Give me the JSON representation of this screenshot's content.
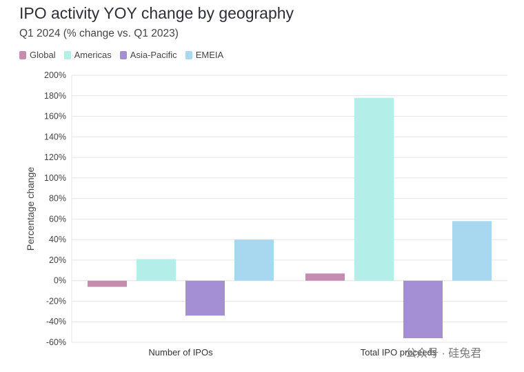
{
  "chart_data": {
    "type": "bar",
    "title": "IPO activity YOY change by geography",
    "subtitle": "Q1 2024 (% change vs. Q1 2023)",
    "ylabel": "Percentage change",
    "xlabel": "",
    "categories": [
      "Number of IPOs",
      "Total IPO proceeds"
    ],
    "series": [
      {
        "name": "Global",
        "color": "#c58cb0",
        "values": [
          -6,
          7
        ]
      },
      {
        "name": "Americas",
        "color": "#b4eee8",
        "values": [
          21,
          178
        ]
      },
      {
        "name": "Asia-Pacific",
        "color": "#a58fd4",
        "values": [
          -34,
          -56
        ]
      },
      {
        "name": "EMEIA",
        "color": "#a8d8f0",
        "values": [
          40,
          58
        ]
      }
    ],
    "ylim": [
      -60,
      200
    ],
    "yticks": [
      200,
      180,
      160,
      140,
      120,
      100,
      80,
      60,
      40,
      20,
      0,
      -20,
      -40,
      -60
    ],
    "ytick_labels": [
      "200%",
      "180%",
      "160%",
      "140%",
      "120%",
      "100%",
      "80%",
      "60%",
      "40%",
      "20%",
      "0%",
      "-20%",
      "-40%",
      "-60%"
    ],
    "grid": true,
    "legend": "top-left"
  },
  "watermark": "公众号 · 硅兔君"
}
